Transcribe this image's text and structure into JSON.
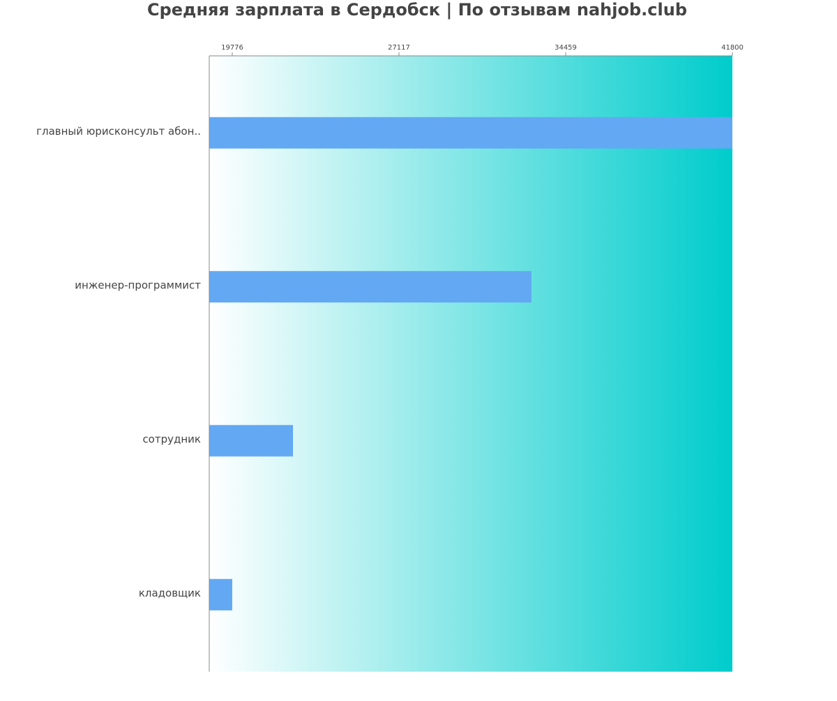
{
  "chart_data": {
    "type": "bar",
    "orientation": "horizontal",
    "title": "Средняя зарплата в Сердобск | По отзывам nahjob.club",
    "categories": [
      "главный юрисконсульт абон..",
      "инженер-программист",
      "сотрудник",
      "кладовщик"
    ],
    "values": [
      41800,
      32950,
      22450,
      19776
    ],
    "color": "#63a8f2",
    "background_gradient": [
      "#ffffff",
      "#00cccc"
    ],
    "xlim": [
      18762,
      41800
    ],
    "xticks": [
      19776,
      27117,
      34459,
      41800
    ]
  }
}
